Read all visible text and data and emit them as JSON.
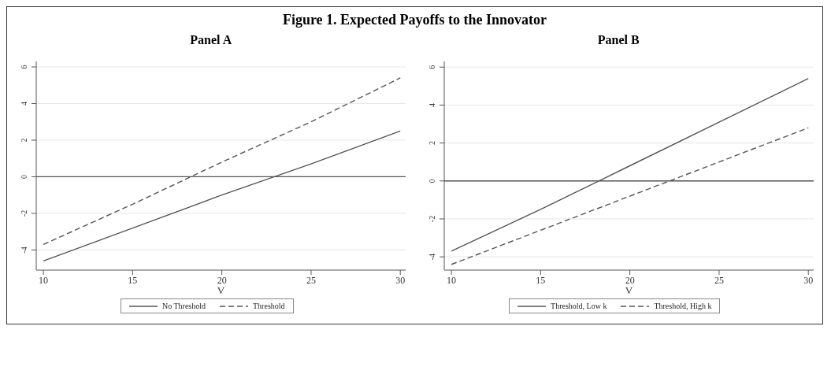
{
  "chart_data": [
    {
      "type": "line",
      "title": "Panel A",
      "annotations": [
        "Figure 1.  Expected Payoffs to the Innovator"
      ],
      "xlabel": "V",
      "x": [
        10,
        15,
        20,
        25,
        30
      ],
      "xlim": [
        9.6,
        30.3
      ],
      "xticks": [
        10,
        15,
        20,
        25,
        30
      ],
      "ylim": [
        -5.1,
        6.3
      ],
      "yticks": [
        -4,
        -2,
        0,
        2,
        4,
        6
      ],
      "grid": "y",
      "legend": "bottom",
      "ref_lines": [
        {
          "axis": "y",
          "value": 0,
          "color": "#555555"
        }
      ],
      "series": [
        {
          "name": "No Threshold",
          "color": "#555555",
          "line_style": "solid",
          "values": [
            -4.6,
            -2.8,
            -1.0,
            0.7,
            2.5
          ]
        },
        {
          "name": "Threshold",
          "color": "#555555",
          "line_style": "dashed",
          "values": [
            -3.7,
            -1.5,
            0.8,
            3.0,
            5.4
          ]
        }
      ]
    },
    {
      "type": "line",
      "title": "Panel B",
      "xlabel": "V",
      "x": [
        10,
        15,
        20,
        25,
        30
      ],
      "xlim": [
        9.6,
        30.3
      ],
      "xticks": [
        10,
        15,
        20,
        25,
        30
      ],
      "ylim": [
        -4.7,
        6.3
      ],
      "yticks": [
        -4,
        -2,
        0,
        2,
        4,
        6
      ],
      "grid": "y",
      "legend": "bottom",
      "ref_lines": [
        {
          "axis": "y",
          "value": 0,
          "color": "#555555"
        }
      ],
      "series": [
        {
          "name": "Threshold, Low k",
          "color": "#555555",
          "line_style": "solid",
          "values": [
            -3.7,
            -1.5,
            0.8,
            3.1,
            5.4
          ]
        },
        {
          "name": "Threshold, High k",
          "color": "#555555",
          "line_style": "dashed",
          "values": [
            -4.4,
            -2.6,
            -0.8,
            1.0,
            2.8
          ]
        }
      ]
    }
  ]
}
